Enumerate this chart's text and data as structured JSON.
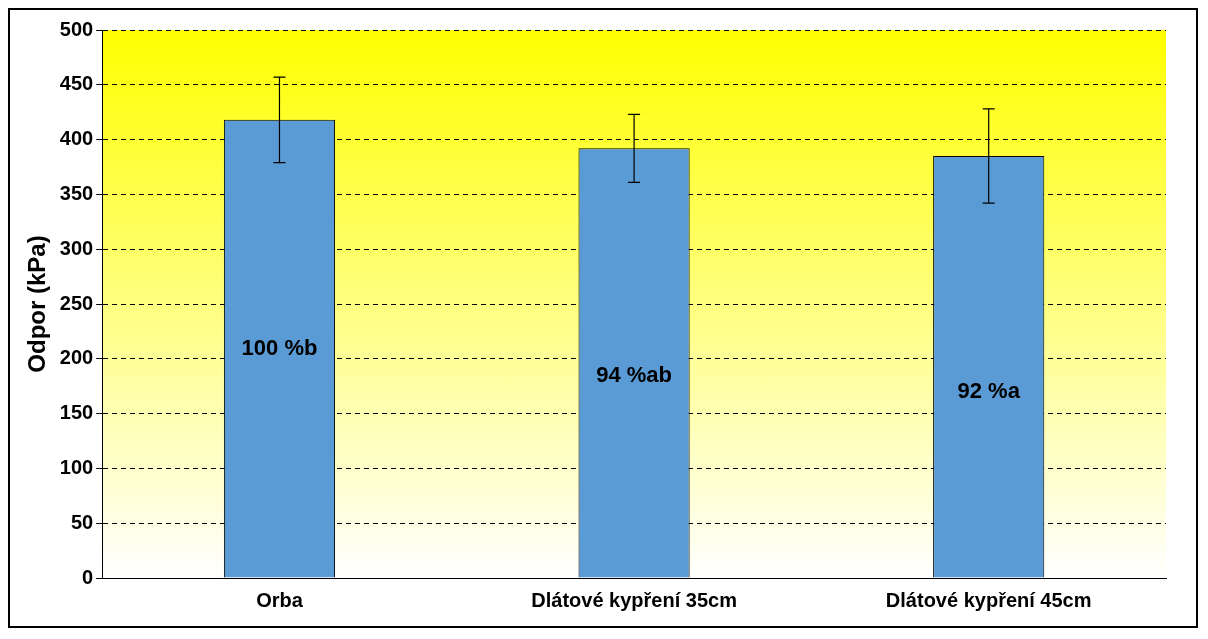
{
  "chart_data": {
    "type": "bar",
    "ylabel": "Odpor (kPa)",
    "categories": [
      "Orba",
      "Dlátové kypření 35cm",
      "Dlátové kypření 45cm"
    ],
    "values": [
      418,
      392,
      385
    ],
    "errors": [
      39,
      31,
      43
    ],
    "annotations": [
      "100 %b",
      "94 %ab",
      "92 %a"
    ],
    "color": "#5b9bd5",
    "ylim": [
      0,
      500
    ],
    "yticks": [
      0,
      50,
      100,
      150,
      200,
      250,
      300,
      350,
      400,
      450,
      500
    ],
    "grid": "y",
    "legend": false
  }
}
